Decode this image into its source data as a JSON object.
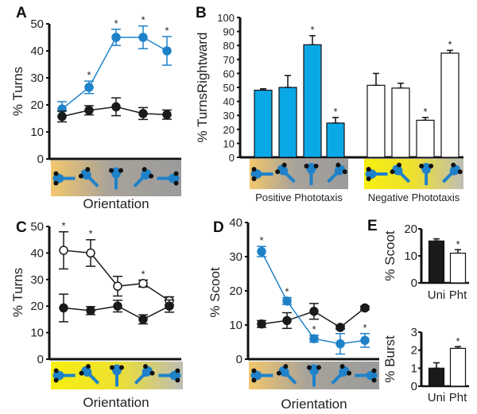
{
  "colors": {
    "blue": "#1f82c9",
    "black": "#1a1a1a",
    "bar_blue": "#0aa8e6",
    "orange": "#f3c76c",
    "gray": "#9b9b9b",
    "yellow": "#f7ef10"
  },
  "chart_data": [
    {
      "id": "A",
      "panel_label": "A",
      "type": "line",
      "ylabel": "% Turns",
      "xlabel": "Orientation",
      "ylim": [
        0,
        50
      ],
      "yticks": [
        "0",
        "10",
        "20",
        "30",
        "40",
        "50"
      ],
      "categories": [
        "orientation 1",
        "orientation 2",
        "orientation 3",
        "orientation 4",
        "orientation 5"
      ],
      "series": [
        {
          "name": "blue",
          "color": "#1f82c9",
          "fill": "filled",
          "values": [
            18.5,
            26.5,
            45,
            45,
            40
          ],
          "errors": [
            2.7,
            2.3,
            3,
            4.2,
            5.3
          ],
          "significant": [
            false,
            true,
            true,
            true,
            true
          ]
        },
        {
          "name": "black",
          "color": "#1a1a1a",
          "fill": "filled",
          "values": [
            15.7,
            18,
            19.3,
            16.8,
            16.4
          ],
          "errors": [
            2,
            1.7,
            3.3,
            2.2,
            1.7
          ],
          "significant": [
            false,
            false,
            false,
            false,
            false
          ]
        }
      ],
      "strip": "orange-gray"
    },
    {
      "id": "B",
      "panel_label": "B",
      "type": "bar",
      "ylabel": "% TurnsRightward",
      "ylim": [
        0,
        100
      ],
      "yticks": [
        "0",
        "10",
        "20",
        "30",
        "40",
        "50",
        "60",
        "70",
        "80",
        "90",
        "100"
      ],
      "groups": [
        {
          "label": "Positive Phototaxis",
          "fill": "#0aa8e6",
          "values": [
            48,
            50,
            80.5,
            24.5
          ],
          "errors": [
            1,
            8.5,
            6.5,
            4
          ],
          "significant": [
            false,
            false,
            true,
            true
          ],
          "strip": "orange-gray"
        },
        {
          "label": "Negative Phototaxis",
          "fill": "#ffffff",
          "values": [
            51.5,
            49.5,
            26.5,
            74.5
          ],
          "errors": [
            8.5,
            3.5,
            2,
            2
          ],
          "significant": [
            false,
            false,
            true,
            true
          ],
          "strip": "yellow-gray"
        }
      ]
    },
    {
      "id": "C",
      "panel_label": "C",
      "type": "line",
      "ylabel": "% Turns",
      "xlabel": "Orientation",
      "ylim": [
        0,
        50
      ],
      "yticks": [
        "0",
        "10",
        "20",
        "30",
        "40",
        "50"
      ],
      "categories": [
        "orientation 1",
        "orientation 2",
        "orientation 3",
        "orientation 4",
        "orientation 5"
      ],
      "series": [
        {
          "name": "open",
          "color": "#1a1a1a",
          "fill": "open",
          "values": [
            41,
            40,
            27.5,
            28.5,
            22
          ],
          "errors": [
            7,
            5,
            3.7,
            1.3,
            1.5
          ],
          "significant": [
            true,
            true,
            false,
            true,
            false
          ]
        },
        {
          "name": "filled",
          "color": "#1a1a1a",
          "fill": "filled",
          "values": [
            19.3,
            18.3,
            20,
            15,
            20
          ],
          "errors": [
            5.2,
            1.5,
            2.2,
            1.7,
            2.3
          ],
          "significant": [
            false,
            false,
            false,
            false,
            false
          ]
        }
      ],
      "strip": "yellow-gray"
    },
    {
      "id": "D",
      "panel_label": "D",
      "type": "line",
      "ylabel": "% Scoot",
      "xlabel": "Orientation",
      "ylim": [
        0,
        40
      ],
      "yticks": [
        "0",
        "10",
        "20",
        "30",
        "40"
      ],
      "categories": [
        "orientation 1",
        "orientation 2",
        "orientation 3",
        "orientation 4",
        "orientation 5"
      ],
      "series": [
        {
          "name": "black",
          "color": "#1a1a1a",
          "fill": "filled",
          "values": [
            10.3,
            11.3,
            14,
            9.3,
            15
          ],
          "errors": [
            1,
            2.3,
            2.3,
            0.5,
            0.5
          ],
          "significant": [
            false,
            false,
            false,
            false,
            false
          ]
        },
        {
          "name": "blue",
          "color": "#1f82c9",
          "fill": "filled",
          "values": [
            31.5,
            17,
            6,
            4.5,
            5.5
          ],
          "errors": [
            1.5,
            1,
            1,
            3,
            2
          ],
          "significant": [
            true,
            true,
            true,
            false,
            true
          ]
        }
      ],
      "strip": "orange-gray"
    },
    {
      "id": "E1",
      "panel_label": "E",
      "type": "bar",
      "ylabel": "% Scoot",
      "ylim": [
        0,
        20
      ],
      "yticks": [
        "0",
        "10",
        "20"
      ],
      "categories": [
        "Uni",
        "Pht"
      ],
      "fills": [
        "#1a1a1a",
        "#ffffff"
      ],
      "values": [
        15.5,
        11
      ],
      "errors": [
        0.8,
        1.3
      ],
      "significant": [
        false,
        true
      ]
    },
    {
      "id": "E2",
      "panel_label": "",
      "type": "bar",
      "ylabel": "% Burst",
      "ylim": [
        0,
        3
      ],
      "yticks": [
        "0",
        "1",
        "2",
        "3"
      ],
      "categories": [
        "Uni",
        "Pht"
      ],
      "fills": [
        "#1a1a1a",
        "#ffffff"
      ],
      "values": [
        1.0,
        2.1
      ],
      "errors": [
        0.3,
        0.1
      ],
      "significant": [
        false,
        true
      ]
    }
  ]
}
